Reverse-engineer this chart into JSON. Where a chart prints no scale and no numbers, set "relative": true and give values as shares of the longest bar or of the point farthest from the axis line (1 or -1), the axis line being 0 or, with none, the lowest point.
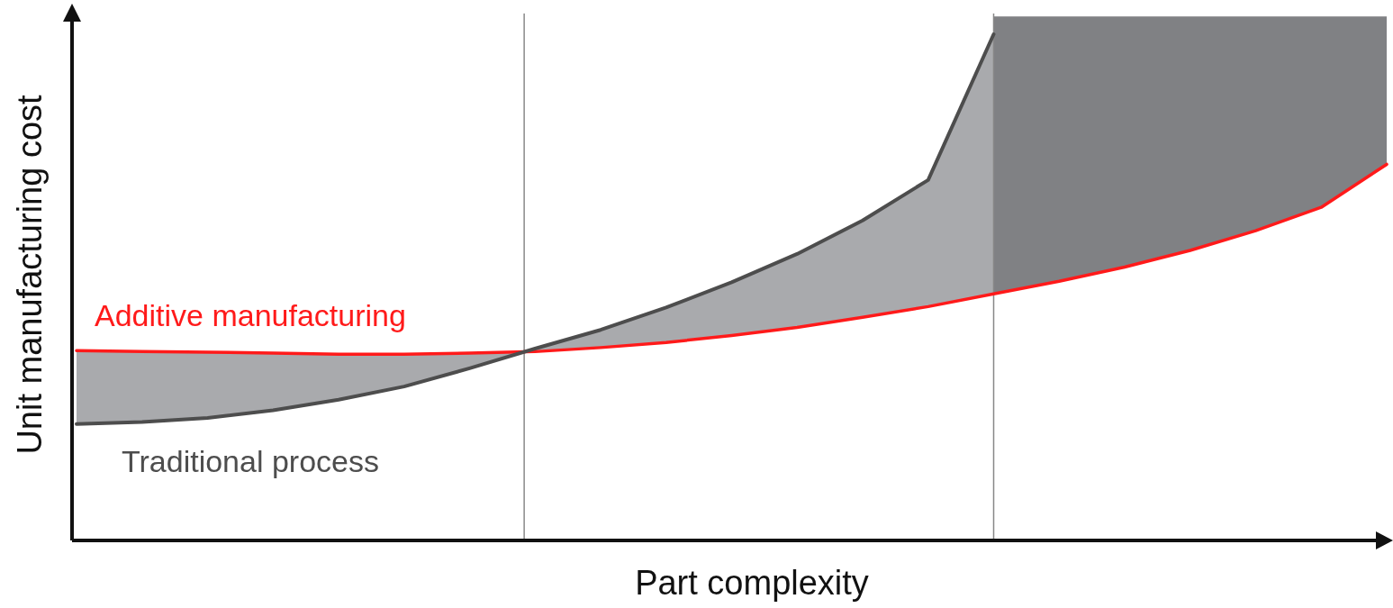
{
  "chart_data": {
    "type": "line",
    "relative": true,
    "xlabel": "Part complexity",
    "ylabel": "Unit manufacturing cost",
    "categories": [
      null,
      null,
      null,
      null,
      null,
      null,
      null,
      null,
      null,
      null,
      null,
      null,
      null,
      null,
      null,
      null,
      null,
      null,
      null,
      null,
      null
    ],
    "marker": "none",
    "line_style": "solid",
    "series": [
      {
        "name": "Additive manufacturing",
        "color": "#ff1a1a",
        "values": [
          0.375,
          0.373,
          0.372,
          0.37,
          0.368,
          0.368,
          0.37,
          0.373,
          0.381,
          0.391,
          0.405,
          0.421,
          0.441,
          0.462,
          0.487,
          0.512,
          0.54,
          0.573,
          0.612,
          0.658,
          0.743
        ],
        "lower": [
          null,
          null,
          null,
          null,
          null,
          null,
          null,
          null,
          null,
          null,
          null,
          null,
          null,
          null,
          0.487,
          0.512,
          0.54,
          0.573,
          0.612,
          0.658,
          0.743
        ],
        "upper": [
          null,
          null,
          null,
          null,
          null,
          null,
          null,
          null,
          null,
          null,
          null,
          null,
          null,
          null,
          1.035,
          1.035,
          1.035,
          1.035,
          1.035,
          1.035,
          1.035
        ]
      },
      {
        "name": "Traditional process",
        "color": "#4d4d4d",
        "values": [
          0.23,
          0.234,
          0.242,
          0.257,
          0.278,
          0.304,
          0.34,
          0.379,
          0.416,
          0.46,
          0.51,
          0.566,
          0.632,
          0.712,
          1,
          null,
          null,
          null,
          null,
          null,
          null
        ]
      }
    ]
  }
}
